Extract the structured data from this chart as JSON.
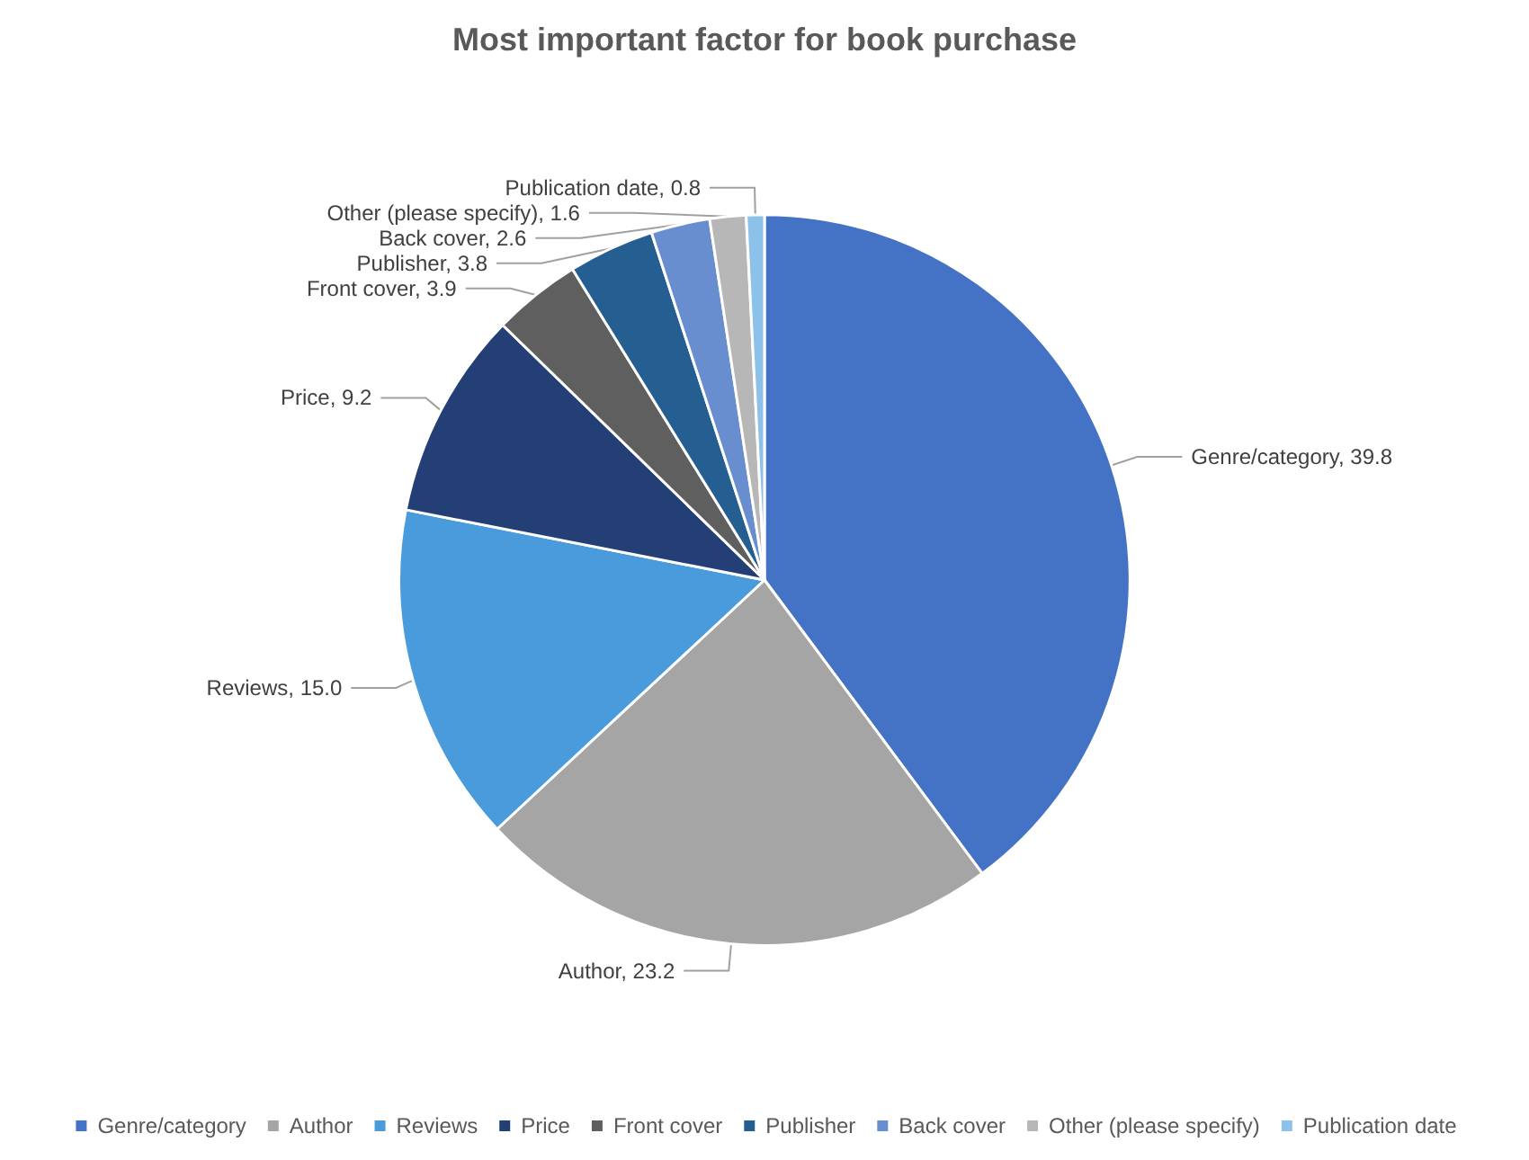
{
  "chart_data": {
    "type": "pie",
    "title": "Most important factor for book purchase",
    "categories": [
      "Genre/category",
      "Author",
      "Reviews",
      "Price",
      "Front cover",
      "Publisher",
      "Back cover",
      "Other (please specify)",
      "Publication date"
    ],
    "values": [
      39.8,
      23.2,
      15.0,
      9.2,
      3.9,
      3.8,
      2.6,
      1.6,
      0.8
    ],
    "value_labels": [
      "Genre/category, 39.8",
      "Author, 23.2",
      "Reviews, 15.0",
      "Price, 9.2",
      "Front cover, 3.9",
      "Publisher, 3.8",
      "Back cover, 2.6",
      "Other (please specify), 1.6",
      "Publication date, 0.8"
    ],
    "colors": [
      "#4472c4",
      "#a5a5a5",
      "#4a9bdb",
      "#233f76",
      "#5f5f5f",
      "#255e91",
      "#698ed0",
      "#b7b7b7",
      "#8cc1ea"
    ],
    "legend": "bottom"
  }
}
